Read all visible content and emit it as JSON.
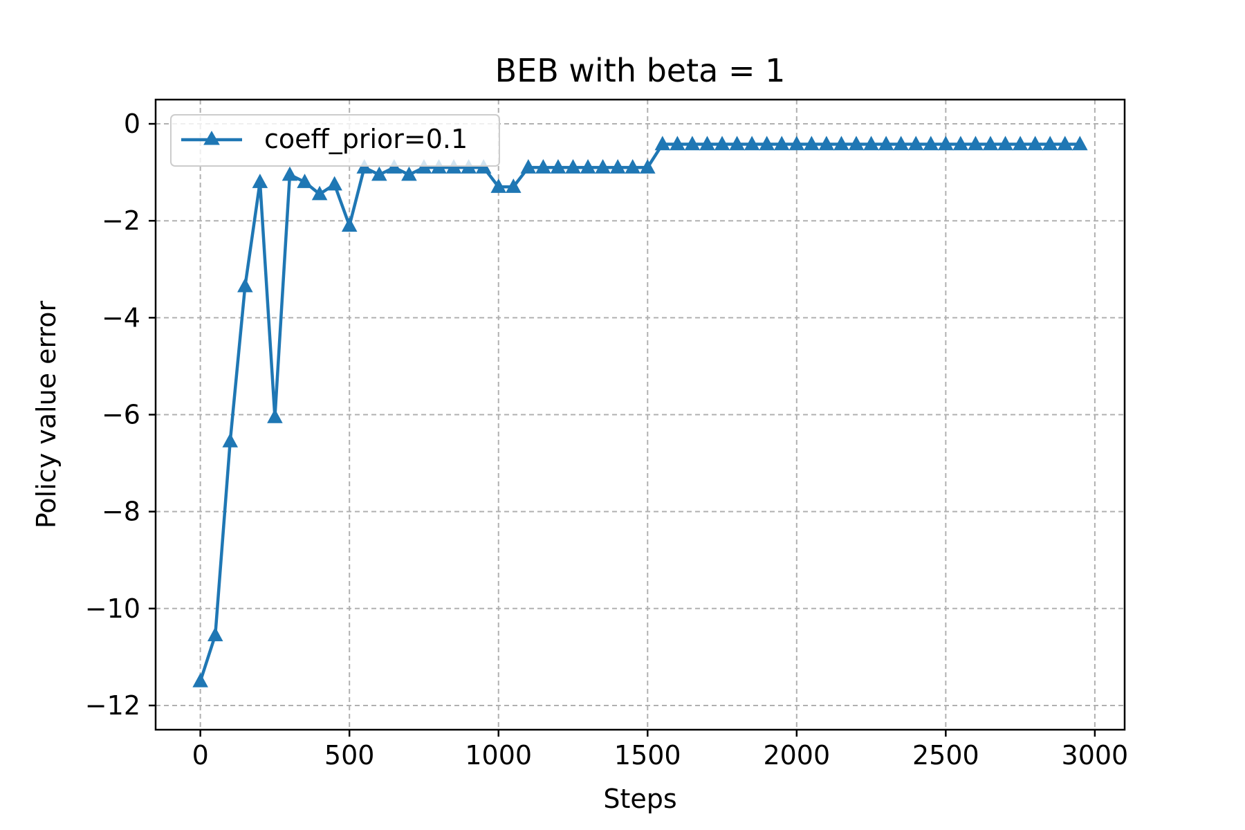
{
  "chart_data": {
    "type": "line",
    "title": "BEB with beta = 1",
    "xlabel": "Steps",
    "ylabel": "Policy value error",
    "xlim": [
      -150,
      3100
    ],
    "ylim": [
      -12.5,
      0.5
    ],
    "xticks": [
      0,
      500,
      1000,
      1500,
      2000,
      2500,
      3000
    ],
    "xtick_labels": [
      "0",
      "500",
      "1000",
      "1500",
      "2000",
      "2500",
      "3000"
    ],
    "yticks": [
      0,
      -2,
      -4,
      -6,
      -8,
      -10,
      -12
    ],
    "ytick_labels": [
      "0",
      "−2",
      "−4",
      "−6",
      "−8",
      "−10",
      "−12"
    ],
    "grid": true,
    "legend_position": "top-left",
    "series": [
      {
        "name": "coeff_prior=0.1",
        "color": "#1f77b4",
        "marker": "triangle",
        "x": [
          0,
          50,
          100,
          150,
          200,
          250,
          300,
          350,
          400,
          450,
          500,
          550,
          600,
          650,
          700,
          750,
          800,
          850,
          900,
          950,
          1000,
          1050,
          1100,
          1150,
          1200,
          1250,
          1300,
          1350,
          1400,
          1450,
          1500,
          1550,
          1600,
          1650,
          1700,
          1750,
          1800,
          1850,
          1900,
          1950,
          2000,
          2050,
          2100,
          2150,
          2200,
          2250,
          2300,
          2350,
          2400,
          2450,
          2500,
          2550,
          2600,
          2650,
          2700,
          2750,
          2800,
          2850,
          2900,
          2950
        ],
        "y": [
          -11.5,
          -10.55,
          -6.55,
          -3.35,
          -1.2,
          -6.05,
          -1.05,
          -1.2,
          -1.45,
          -1.25,
          -2.1,
          -0.9,
          -1.05,
          -0.9,
          -1.05,
          -0.9,
          -0.9,
          -0.9,
          -0.9,
          -0.9,
          -1.3,
          -1.3,
          -0.9,
          -0.9,
          -0.9,
          -0.9,
          -0.9,
          -0.9,
          -0.9,
          -0.9,
          -0.9,
          -0.42,
          -0.42,
          -0.42,
          -0.42,
          -0.42,
          -0.42,
          -0.42,
          -0.42,
          -0.42,
          -0.42,
          -0.42,
          -0.42,
          -0.42,
          -0.42,
          -0.42,
          -0.42,
          -0.42,
          -0.42,
          -0.42,
          -0.42,
          -0.42,
          -0.42,
          -0.42,
          -0.42,
          -0.42,
          -0.42,
          -0.42,
          -0.42,
          -0.42
        ]
      }
    ]
  }
}
